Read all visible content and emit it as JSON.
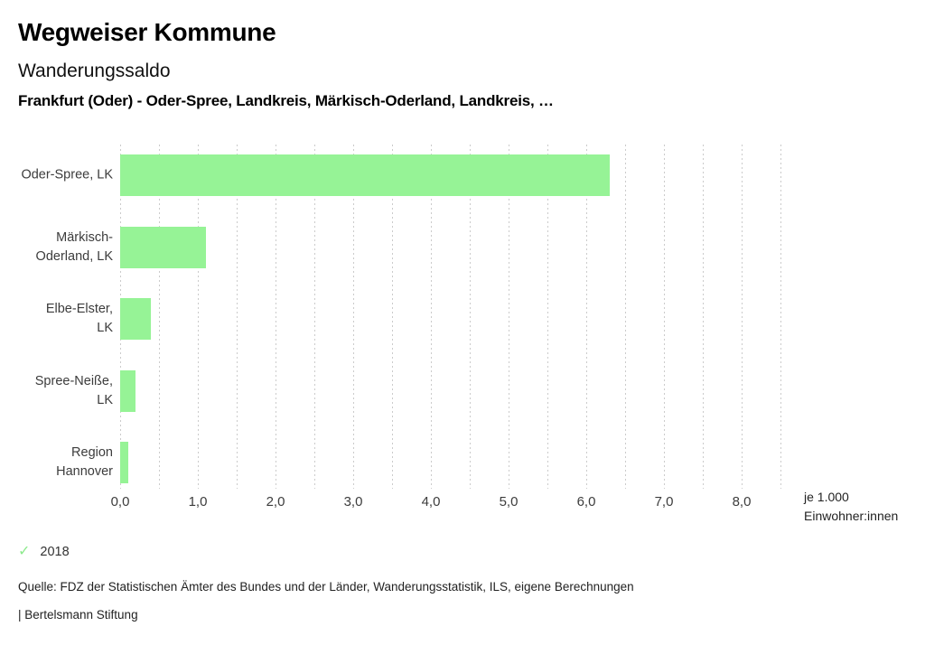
{
  "header": {
    "title": "Wegweiser Kommune",
    "subtitle": "Wanderungssaldo",
    "selection": "Frankfurt (Oder) - Oder-Spree, Landkreis, Märkisch-Oderland, Landkreis, …"
  },
  "chart_data": {
    "type": "bar",
    "orientation": "horizontal",
    "title": "Wanderungssaldo",
    "categories": [
      "Oder-Spree, LK",
      "Märkisch-Oderland, LK",
      "Elbe-Elster, LK",
      "Spree-Neiße, LK",
      "Region Hannover"
    ],
    "category_label_lines": [
      [
        "Oder-Spree, LK"
      ],
      [
        "Märkisch-",
        "Oderland, LK"
      ],
      [
        "Elbe-Elster,",
        "LK"
      ],
      [
        "Spree-Neiße,",
        "LK"
      ],
      [
        "Region",
        "Hannover"
      ]
    ],
    "series": [
      {
        "name": "2018",
        "values": [
          6.3,
          1.1,
          0.4,
          0.2,
          0.1
        ]
      }
    ],
    "values": [
      6.3,
      1.1,
      0.4,
      0.2,
      0.1
    ],
    "x_tick_labels": [
      "0,0",
      "1,0",
      "2,0",
      "3,0",
      "4,0",
      "5,0",
      "6,0",
      "7,0",
      "8,0"
    ],
    "xlim": [
      0,
      8.5
    ],
    "grid_step": 0.5,
    "grid_on": true,
    "xlabel": "je 1.000 Einwohner:innen",
    "xlabel_lines": [
      "je 1.000",
      "Einwohner:innen"
    ],
    "legend_position": "bottom-left",
    "bar_color": "#96f396",
    "grid_color": "#cbcbcb"
  },
  "legend": {
    "marker": "✓",
    "marker_color": "#8dea8d",
    "label": "2018"
  },
  "footer": {
    "source": "Quelle: FDZ der Statistischen Ämter des Bundes und der Länder, Wanderungsstatistik, ILS, eigene Berechnungen",
    "branding": "| Bertelsmann Stiftung"
  }
}
